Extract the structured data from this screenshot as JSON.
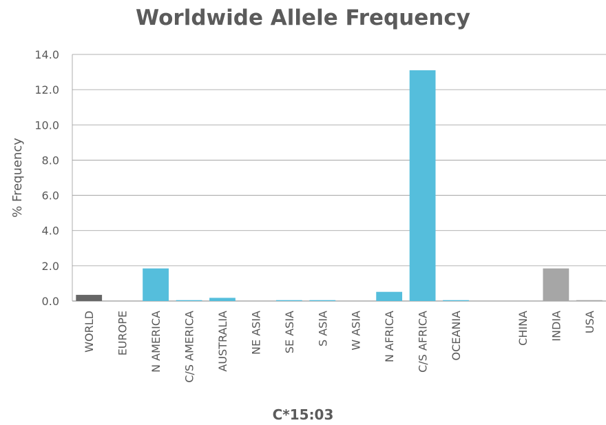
{
  "chart_data": {
    "type": "bar",
    "title": "Worldwide Allele Frequency",
    "xlabel": "C*15:03",
    "ylabel": "% Frequency",
    "ylim": [
      0,
      14
    ],
    "yticks": [
      "0.0",
      "2.0",
      "4.0",
      "6.0",
      "8.0",
      "10.0",
      "12.0",
      "14.0"
    ],
    "grid": true,
    "categories": [
      "WORLD",
      "EUROPE",
      "N AMERICA",
      "C/S AMERICA",
      "AUSTRALIA",
      "NE ASIA",
      "SE ASIA",
      "S ASIA",
      "W ASIA",
      "N AFRICA",
      "C/S AFRICA",
      "OCEANIA",
      "",
      "CHINA",
      "INDIA",
      "USA"
    ],
    "values": [
      0.35,
      0.0,
      1.85,
      0.05,
      0.18,
      0.0,
      0.05,
      0.05,
      0.0,
      0.52,
      13.1,
      0.05,
      null,
      0.0,
      1.85,
      0.05
    ],
    "bar_colors": [
      "#666666",
      "#55bedc",
      "#55bedc",
      "#55bedc",
      "#55bedc",
      "#55bedc",
      "#55bedc",
      "#55bedc",
      "#55bedc",
      "#55bedc",
      "#55bedc",
      "#55bedc",
      "#55bedc",
      "#a6a6a6",
      "#a6a6a6",
      "#a6a6a6"
    ]
  },
  "colors": {
    "axis_text": "#595959",
    "grid": "#999999",
    "title": "#5b5b5b"
  }
}
